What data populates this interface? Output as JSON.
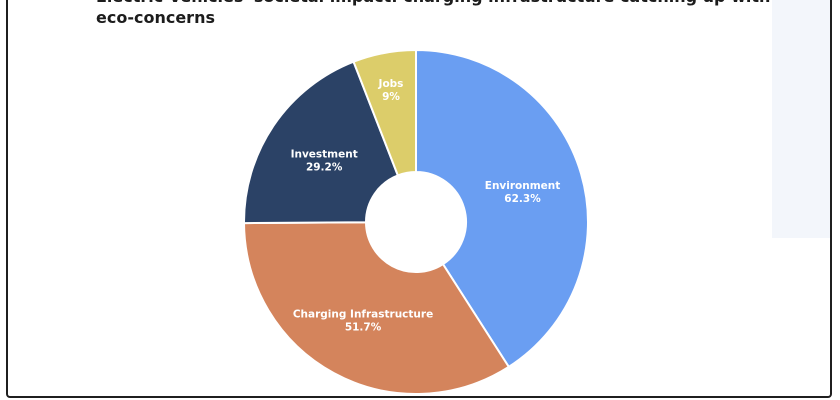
{
  "title": "Electric Vehicles' societal impact: charging infrastructure catching up with eco-concerns",
  "chart_data": {
    "type": "pie",
    "title": "Electric Vehicles' societal impact: charging infrastructure catching up with eco-concerns",
    "donut": true,
    "legend": "none",
    "slices": [
      {
        "label": "Environment",
        "value": 62.3,
        "value_label": "62.3%",
        "color": "#6a9ef2",
        "text_color": "#ffffff"
      },
      {
        "label": "Charging Infrastructure",
        "value": 51.7,
        "value_label": "51.7%",
        "color": "#d4845c",
        "text_color": "#ffffff"
      },
      {
        "label": "Investment",
        "value": 29.2,
        "value_label": "29.2%",
        "color": "#2b4266",
        "text_color": "#ffffff"
      },
      {
        "label": "Jobs",
        "value": 9,
        "value_label": "9%",
        "color": "#dccd6a",
        "text_color": "#ffffff"
      }
    ]
  }
}
